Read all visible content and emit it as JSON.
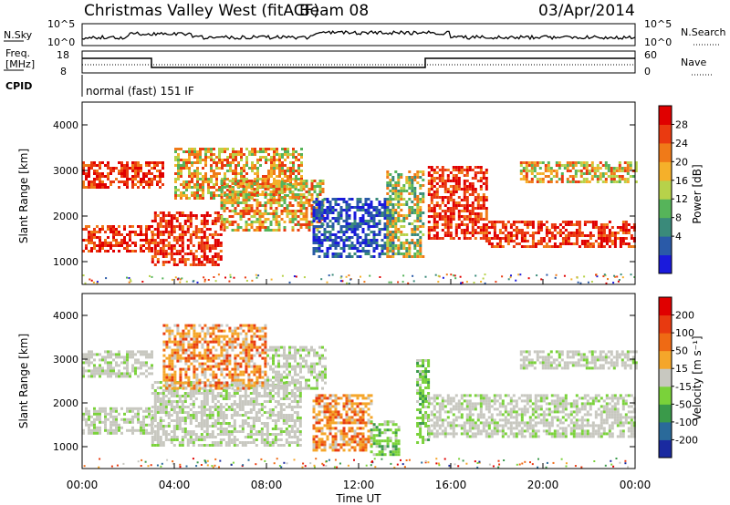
{
  "header": {
    "station": "Christmas Valley West (fitACF)",
    "beam": "Beam 08",
    "date": "03/Apr/2014"
  },
  "summary": {
    "nsky_label": "N.Sky",
    "nsky_ticks": [
      "10^5",
      "10^0"
    ],
    "nsearch_label": "N.Search",
    "nsearch_ticks": [
      "10^5",
      "10^0"
    ],
    "freq_label": "Freq.",
    "freq_unit": "[MHz]",
    "freq_ticks": [
      "18",
      "8"
    ],
    "nave_label": "Nave",
    "nave_ticks": [
      "60",
      "0"
    ],
    "cpid_label": "CPID",
    "cpid_value": "normal (fast) 151 IF"
  },
  "chart_data": [
    {
      "type": "heatmap",
      "panel": "power",
      "ylabel": "Slant Range [km]",
      "yticks": [
        "4000",
        "3000",
        "2000",
        "1000"
      ],
      "ylim": [
        500,
        4500
      ],
      "colorbar": {
        "label": "Power [dB]",
        "ticks": [
          "28",
          "24",
          "20",
          "16",
          "12",
          "8",
          "4"
        ],
        "colors": [
          "#1a1adc",
          "#2a5aa8",
          "#3a8a7a",
          "#56b45a",
          "#b7d24a",
          "#f5b02a",
          "#f07a18",
          "#ea3a10",
          "#e00000"
        ]
      },
      "bands": [
        {
          "t0": 0.0,
          "t1": 3.0,
          "r0": 1250,
          "r1": 1800,
          "level": "high"
        },
        {
          "t0": 0.0,
          "t1": 3.5,
          "r0": 2650,
          "r1": 3200,
          "level": "high"
        },
        {
          "t0": 3.0,
          "t1": 6.0,
          "r0": 900,
          "r1": 2100,
          "level": "high"
        },
        {
          "t0": 4.0,
          "t1": 9.5,
          "r0": 2400,
          "r1": 3500,
          "level": "mid"
        },
        {
          "t0": 6.0,
          "t1": 10.5,
          "r0": 1700,
          "r1": 2800,
          "level": "mid"
        },
        {
          "t0": 10.0,
          "t1": 13.5,
          "r0": 1100,
          "r1": 2400,
          "level": "low"
        },
        {
          "t0": 13.2,
          "t1": 14.8,
          "r0": 1100,
          "r1": 3000,
          "level": "mixed"
        },
        {
          "t0": 15.0,
          "t1": 17.5,
          "r0": 1500,
          "r1": 3100,
          "level": "high"
        },
        {
          "t0": 17.5,
          "t1": 24.0,
          "r0": 1300,
          "r1": 1900,
          "level": "high"
        },
        {
          "t0": 19.0,
          "t1": 24.0,
          "r0": 2750,
          "r1": 3200,
          "level": "mid"
        }
      ]
    },
    {
      "type": "heatmap",
      "panel": "velocity",
      "ylabel": "Slant Range [km]",
      "yticks": [
        "4000",
        "3000",
        "2000",
        "1000"
      ],
      "ylim": [
        500,
        4500
      ],
      "xlabel": "Time UT",
      "xticks": [
        "00:00",
        "04:00",
        "08:00",
        "12:00",
        "16:00",
        "20:00",
        "00:00"
      ],
      "xlim": [
        0,
        24
      ],
      "colorbar": {
        "label": "Velocity [m s⁻¹]",
        "ticks": [
          "200",
          "100",
          "50",
          "15",
          "-15",
          "-50",
          "-100",
          "-200"
        ],
        "colors": [
          "#1a2aa0",
          "#2a6a9a",
          "#3a9a4a",
          "#7ad23a",
          "#c8c8c0",
          "#f5a62a",
          "#ef6a14",
          "#e83a10",
          "#e00000"
        ]
      },
      "bands": [
        {
          "t0": 0.0,
          "t1": 3.0,
          "r0": 1300,
          "r1": 1900,
          "level": "gray"
        },
        {
          "t0": 0.0,
          "t1": 3.0,
          "r0": 2600,
          "r1": 3200,
          "level": "gray"
        },
        {
          "t0": 3.0,
          "t1": 9.5,
          "r0": 1000,
          "r1": 2500,
          "level": "gray"
        },
        {
          "t0": 3.5,
          "t1": 8.0,
          "r0": 2300,
          "r1": 3800,
          "level": "orange"
        },
        {
          "t0": 8.0,
          "t1": 10.5,
          "r0": 2300,
          "r1": 3300,
          "level": "gray"
        },
        {
          "t0": 10.0,
          "t1": 12.5,
          "r0": 900,
          "r1": 2200,
          "level": "orange"
        },
        {
          "t0": 12.5,
          "t1": 13.8,
          "r0": 800,
          "r1": 1600,
          "level": "green"
        },
        {
          "t0": 14.5,
          "t1": 15.0,
          "r0": 1100,
          "r1": 3000,
          "level": "green"
        },
        {
          "t0": 15.0,
          "t1": 24.0,
          "r0": 1200,
          "r1": 2200,
          "level": "gray"
        },
        {
          "t0": 19.0,
          "t1": 24.0,
          "r0": 2800,
          "r1": 3200,
          "level": "gray"
        }
      ]
    }
  ]
}
